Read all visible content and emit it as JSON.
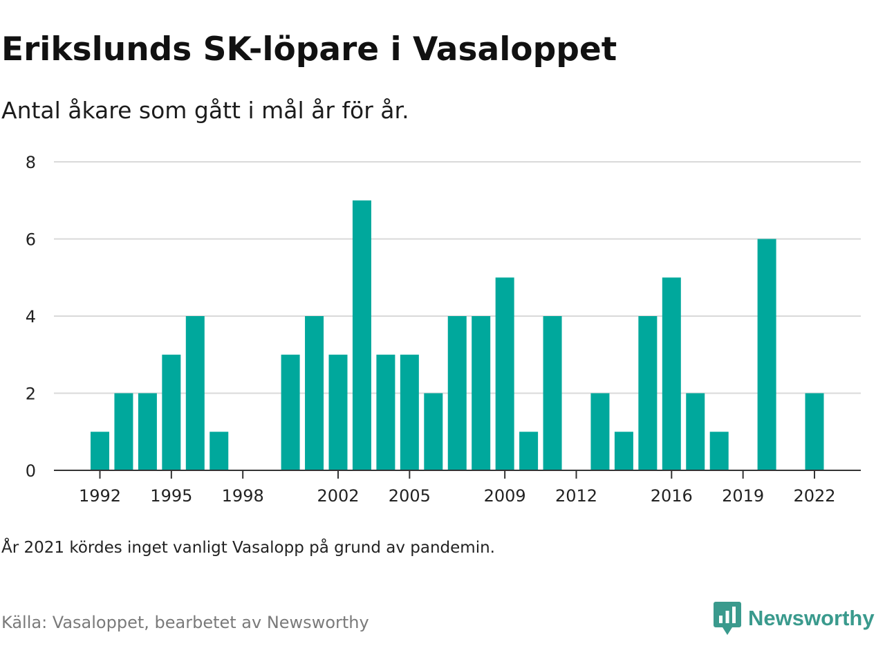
{
  "title": "Erikslunds SK-löpare i Vasaloppet",
  "subtitle": "Antal åkare som gått i mål år för år.",
  "note": "År 2021 kördes inget vanligt Vasalopp på grund av pandemin.",
  "source": "Källa: Vasaloppet, bearbetet av Newsworthy",
  "brand": {
    "name": "Newsworthy",
    "icon": "newsworthy-logo-icon",
    "color": "#3a9a8d"
  },
  "chart_data": {
    "type": "bar",
    "x": [
      1992,
      1993,
      1994,
      1995,
      1996,
      1997,
      1998,
      1999,
      2000,
      2001,
      2002,
      2003,
      2004,
      2005,
      2006,
      2007,
      2008,
      2009,
      2010,
      2011,
      2012,
      2013,
      2014,
      2015,
      2016,
      2017,
      2018,
      2019,
      2020,
      2021,
      2022
    ],
    "values": [
      1,
      2,
      2,
      3,
      4,
      1,
      0,
      0,
      3,
      4,
      3,
      7,
      3,
      3,
      2,
      4,
      4,
      5,
      1,
      4,
      0,
      2,
      1,
      4,
      5,
      2,
      1,
      0,
      6,
      0,
      2
    ],
    "xticks": [
      1992,
      1995,
      1998,
      2002,
      2005,
      2009,
      2012,
      2016,
      2019,
      2022
    ],
    "yticks": [
      0,
      2,
      4,
      6,
      8
    ],
    "ylim": [
      0,
      8
    ],
    "grid": true,
    "bar_color": "#00a89c"
  }
}
